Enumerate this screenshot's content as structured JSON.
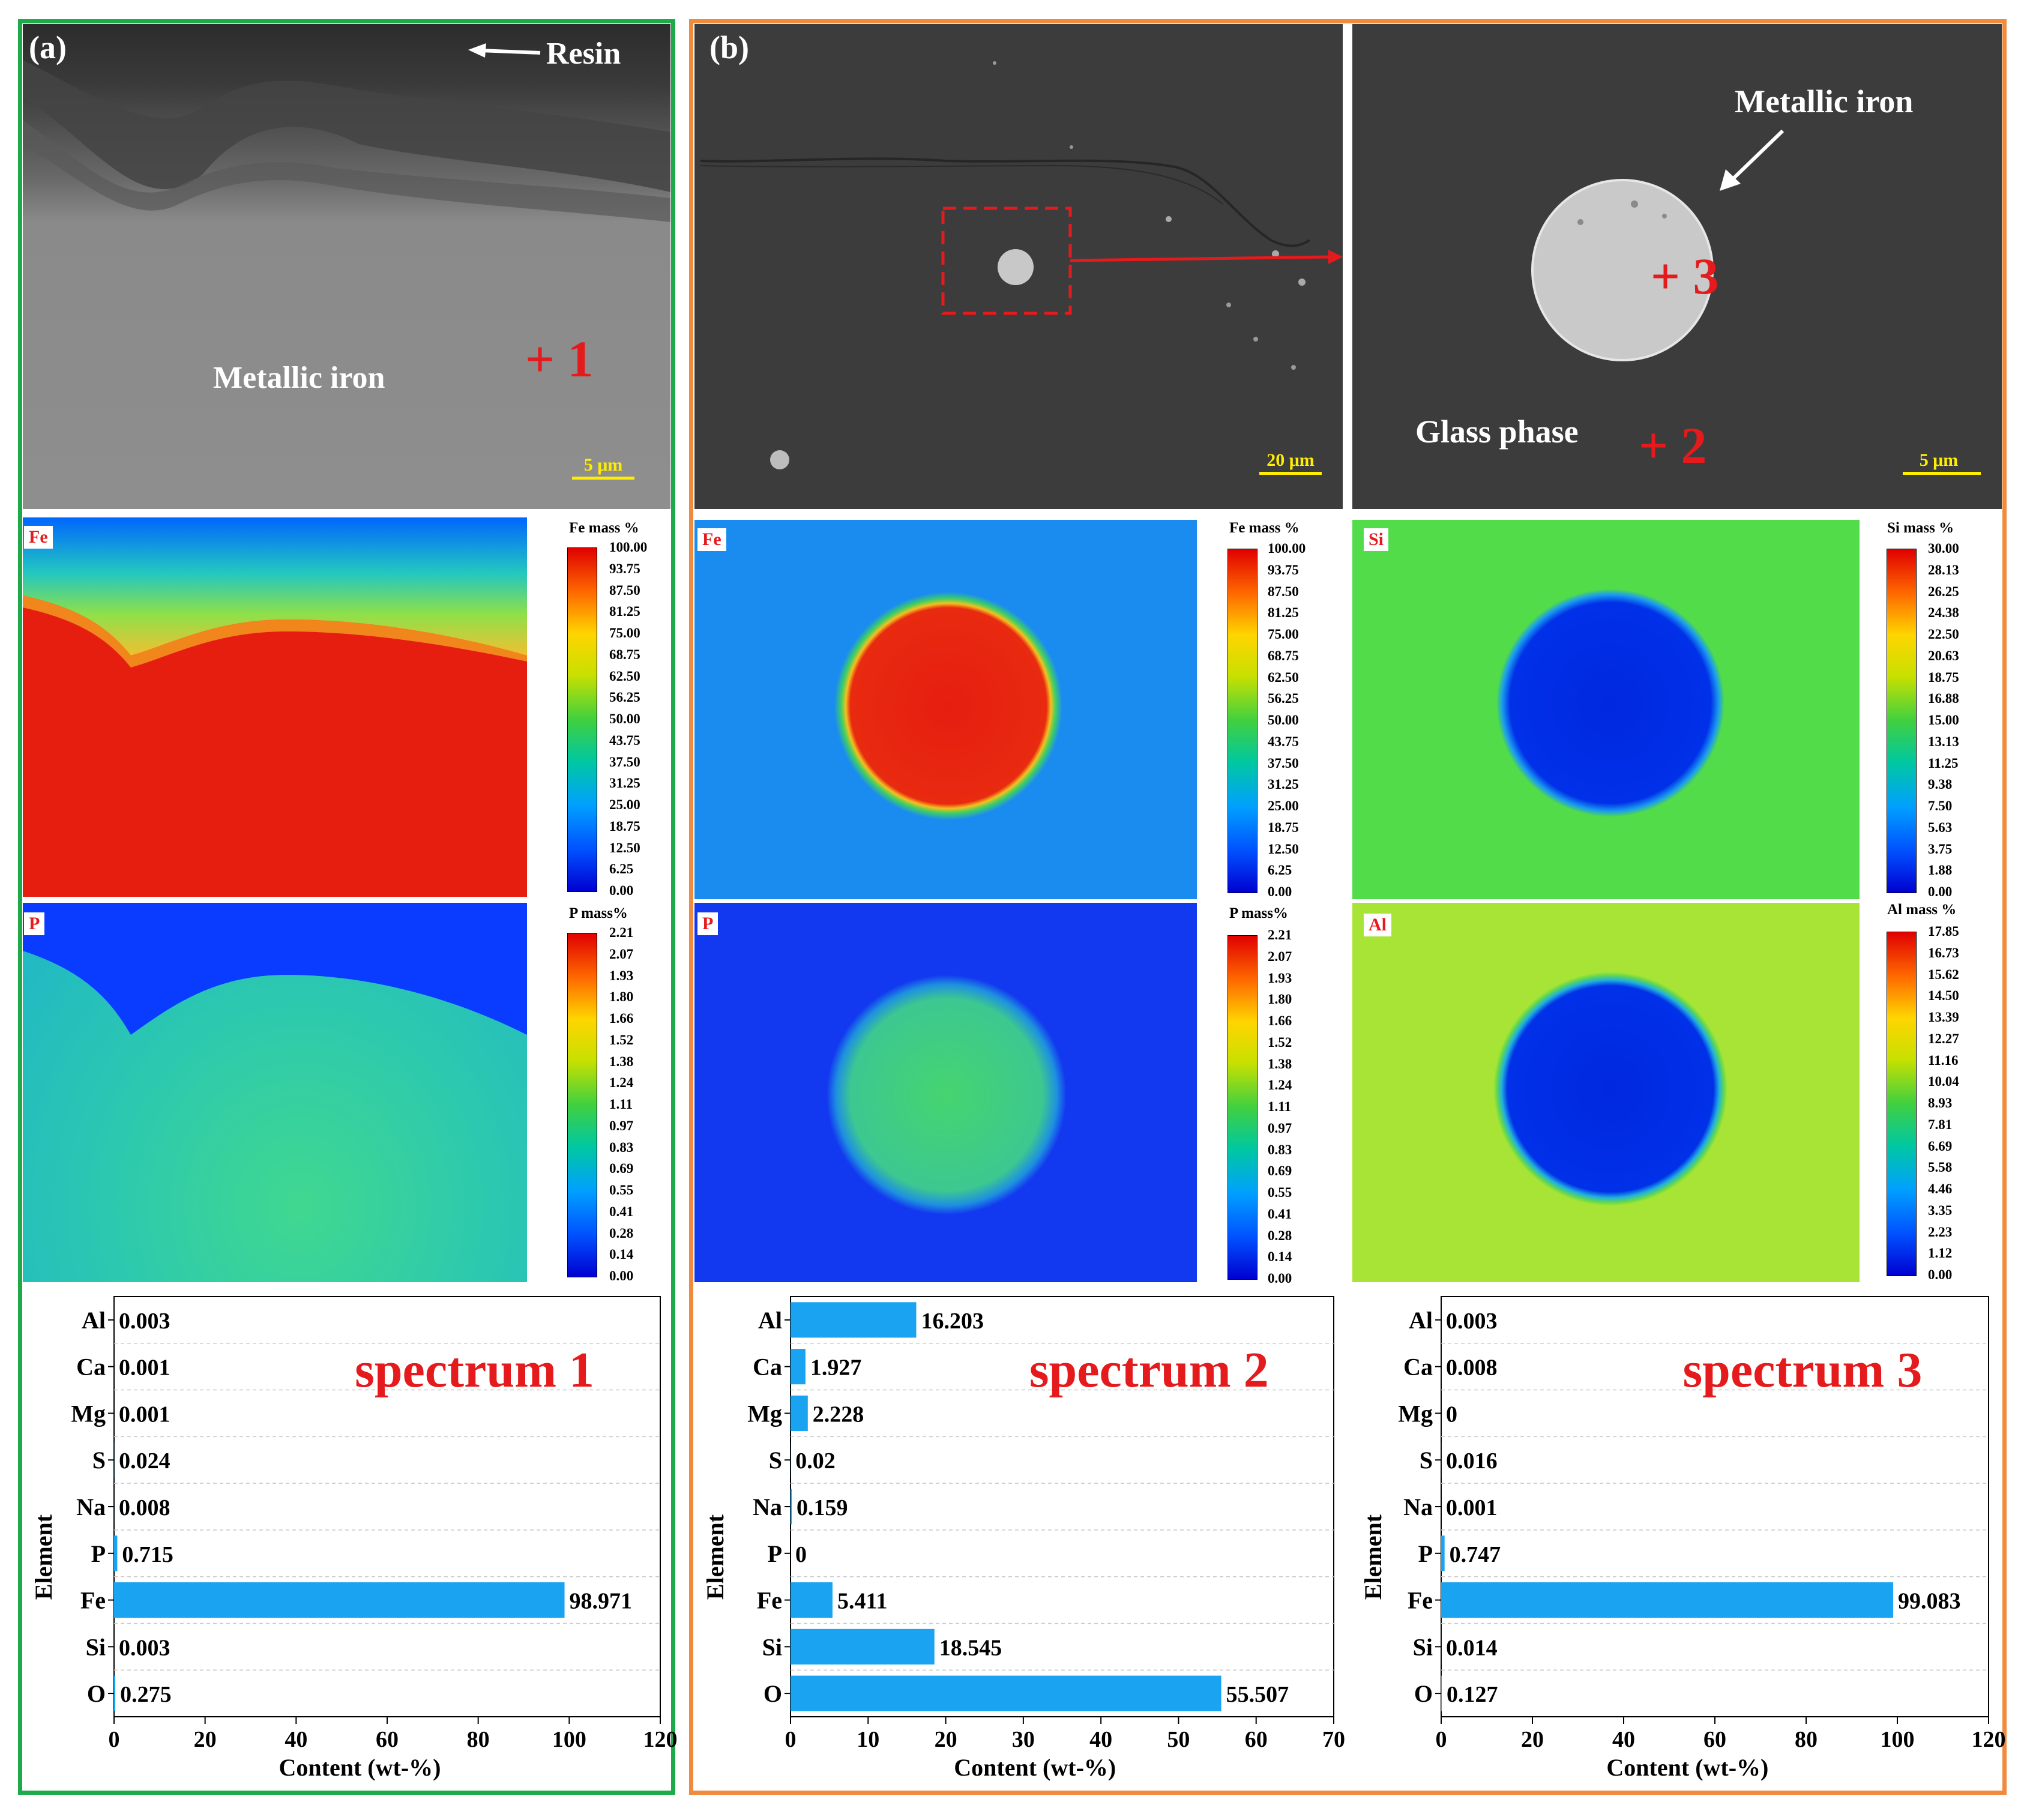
{
  "panel_a": {
    "label": "(a)",
    "resin_label": "Resin",
    "phase_label": "Metallic iron",
    "point_marker": "+ 1",
    "scale_label": "5 μm",
    "fe_map": {
      "tag": "Fe",
      "title": "Fe mass %",
      "ticks": [
        "100.00",
        "93.75",
        "87.50",
        "81.25",
        "75.00",
        "68.75",
        "62.50",
        "56.25",
        "50.00",
        "43.75",
        "37.50",
        "31.25",
        "25.00",
        "18.75",
        "12.50",
        "6.25",
        "0.00"
      ]
    },
    "p_map": {
      "tag": "P",
      "title": "P mass%",
      "ticks": [
        "2.21",
        "2.07",
        "1.93",
        "1.80",
        "1.66",
        "1.52",
        "1.38",
        "1.24",
        "1.11",
        "0.97",
        "0.83",
        "0.69",
        "0.55",
        "0.41",
        "0.28",
        "0.14",
        "0.00"
      ]
    }
  },
  "panel_b": {
    "label": "(b)",
    "scale_left": "20 μm",
    "metallic_label": "Metallic iron",
    "point3": "+ 3",
    "glass_label": "Glass phase",
    "point2": "+ 2",
    "scale_right": "5 μm",
    "fe_map": {
      "tag": "Fe",
      "title": "Fe mass %",
      "ticks": [
        "100.00",
        "93.75",
        "87.50",
        "81.25",
        "75.00",
        "68.75",
        "62.50",
        "56.25",
        "50.00",
        "43.75",
        "37.50",
        "31.25",
        "25.00",
        "18.75",
        "12.50",
        "6.25",
        "0.00"
      ]
    },
    "si_map": {
      "tag": "Si",
      "title": "Si mass %",
      "ticks": [
        "30.00",
        "28.13",
        "26.25",
        "24.38",
        "22.50",
        "20.63",
        "18.75",
        "16.88",
        "15.00",
        "13.13",
        "11.25",
        "9.38",
        "7.50",
        "5.63",
        "3.75",
        "1.88",
        "0.00"
      ]
    },
    "p_map": {
      "tag": "P",
      "title": "P mass%",
      "ticks": [
        "2.21",
        "2.07",
        "1.93",
        "1.80",
        "1.66",
        "1.52",
        "1.38",
        "1.24",
        "1.11",
        "0.97",
        "0.83",
        "0.69",
        "0.55",
        "0.41",
        "0.28",
        "0.14",
        "0.00"
      ]
    },
    "al_map": {
      "tag": "Al",
      "title": "Al mass %",
      "ticks": [
        "17.85",
        "16.73",
        "15.62",
        "14.50",
        "13.39",
        "12.27",
        "11.16",
        "10.04",
        "8.93",
        "7.81",
        "6.69",
        "5.58",
        "4.46",
        "3.35",
        "2.23",
        "1.12",
        "0.00"
      ]
    }
  },
  "colors": {
    "panel_a_border": "#1faa4a",
    "panel_b_border": "#f08a3c",
    "bar": "#1aa3f0",
    "annotation_red": "#e41a1c",
    "scale_yellow": "#ffee00"
  },
  "chart_data": [
    {
      "type": "bar",
      "orientation": "horizontal",
      "title": "spectrum 1",
      "xlabel": "Content (wt-%)",
      "ylabel": "Element",
      "xlim": [
        0,
        120
      ],
      "xticks": [
        "0",
        "20",
        "40",
        "60",
        "80",
        "100",
        "120"
      ],
      "categories": [
        "Al",
        "Ca",
        "Mg",
        "S",
        "Na",
        "P",
        "Fe",
        "Si",
        "O"
      ],
      "values": [
        0.003,
        0.001,
        0.001,
        0.024,
        0.008,
        0.715,
        98.971,
        0.003,
        0.275
      ],
      "value_labels": [
        "0.003",
        "0.001",
        "0.001",
        "0.024",
        "0.008",
        "0.715",
        "98.971",
        "0.003",
        "0.275"
      ]
    },
    {
      "type": "bar",
      "orientation": "horizontal",
      "title": "spectrum 2",
      "xlabel": "Content (wt-%)",
      "ylabel": "Element",
      "xlim": [
        0,
        70
      ],
      "xticks": [
        "0",
        "10",
        "20",
        "30",
        "40",
        "50",
        "60",
        "70"
      ],
      "categories": [
        "Al",
        "Ca",
        "Mg",
        "S",
        "Na",
        "P",
        "Fe",
        "Si",
        "O"
      ],
      "values": [
        16.203,
        1.927,
        2.228,
        0.02,
        0.159,
        0,
        5.411,
        18.545,
        55.507
      ],
      "value_labels": [
        "16.203",
        "1.927",
        "2.228",
        "0.02",
        "0.159",
        "0",
        "5.411",
        "18.545",
        "55.507"
      ]
    },
    {
      "type": "bar",
      "orientation": "horizontal",
      "title": "spectrum 3",
      "xlabel": "Content (wt-%)",
      "ylabel": "Element",
      "xlim": [
        0,
        120
      ],
      "xticks": [
        "0",
        "20",
        "40",
        "60",
        "80",
        "100",
        "120"
      ],
      "categories": [
        "Al",
        "Ca",
        "Mg",
        "S",
        "Na",
        "P",
        "Fe",
        "Si",
        "O"
      ],
      "values": [
        0.003,
        0.008,
        0,
        0.016,
        0.001,
        0.747,
        99.083,
        0.014,
        0.127
      ],
      "value_labels": [
        "0.003",
        "0.008",
        "0",
        "0.016",
        "0.001",
        "0.747",
        "99.083",
        "0.014",
        "0.127"
      ]
    }
  ]
}
